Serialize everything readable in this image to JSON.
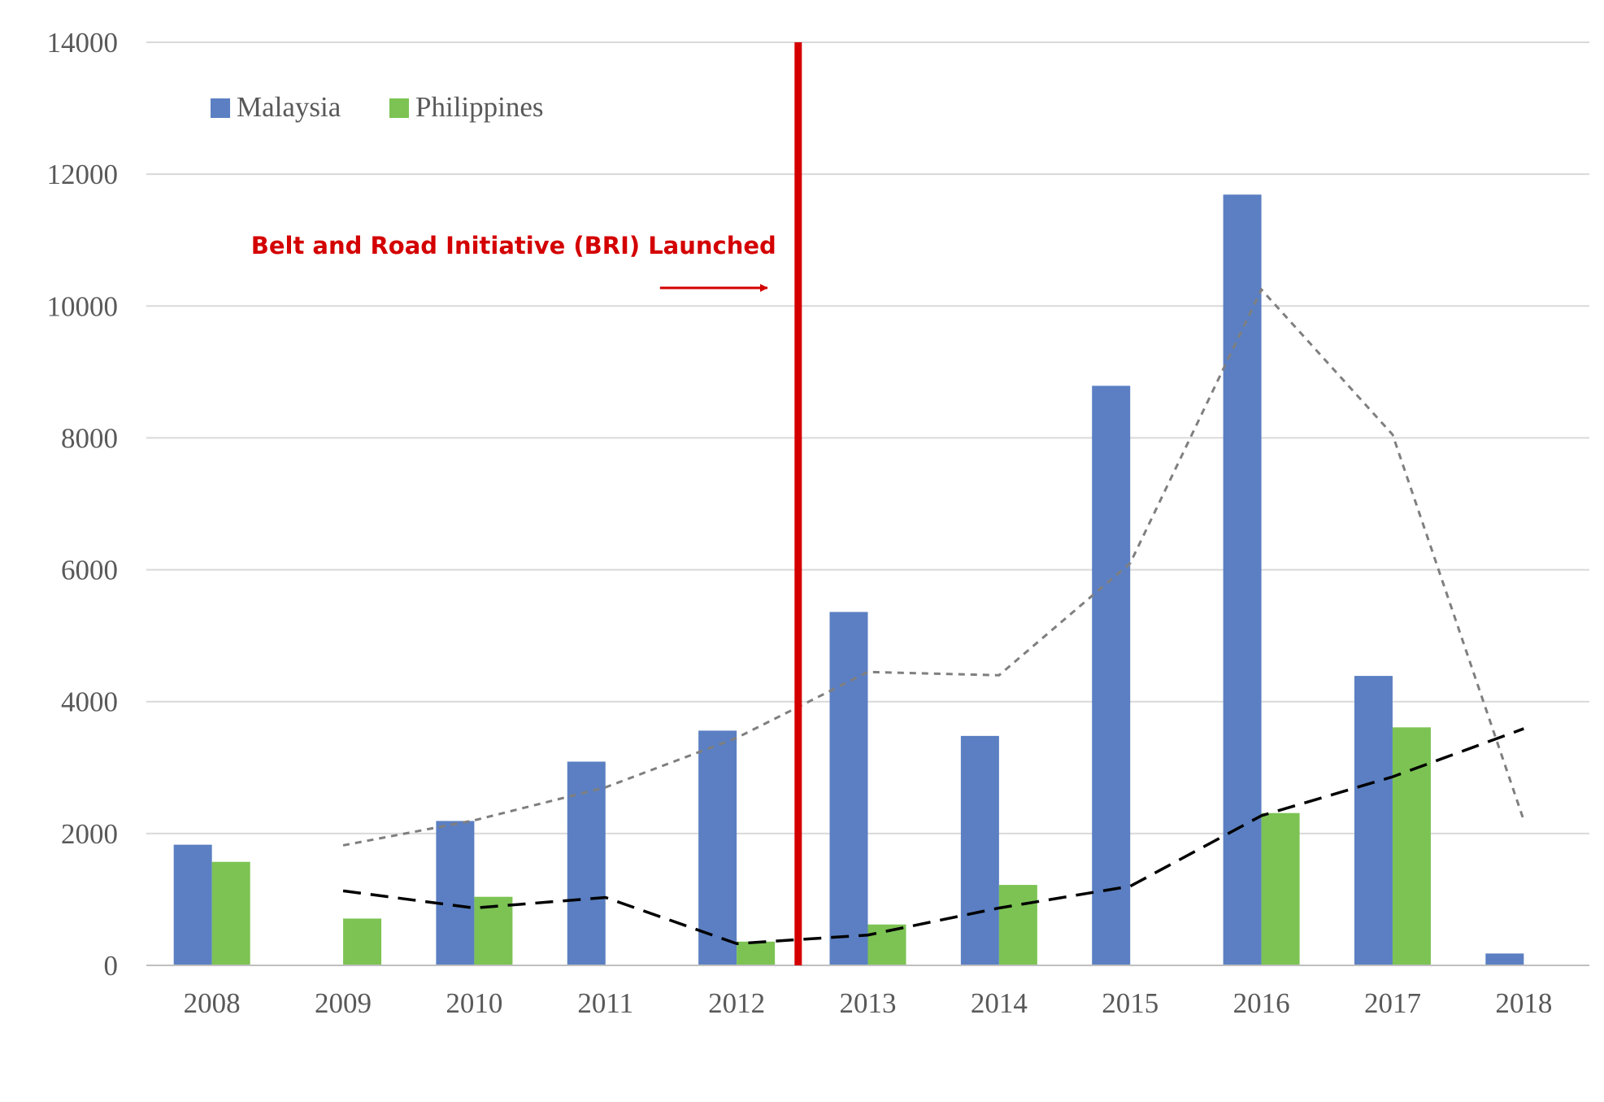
{
  "chart_data": {
    "type": "bar",
    "categories": [
      "2008",
      "2009",
      "2010",
      "2011",
      "2012",
      "2013",
      "2014",
      "2015",
      "2016",
      "2017",
      "2018"
    ],
    "series": [
      {
        "name": "Malaysia",
        "color": "#5b7fc2",
        "values": [
          1830,
          0,
          2190,
          3090,
          3560,
          5360,
          3480,
          8790,
          11690,
          4390,
          180
        ]
      },
      {
        "name": "Philippines",
        "color": "#7cc353",
        "values": [
          1570,
          710,
          1040,
          0,
          360,
          620,
          1220,
          0,
          2310,
          3610,
          0
        ]
      }
    ],
    "trendlines": [
      {
        "style": "dotted",
        "color": "#7f7f7f",
        "x": [
          "2009",
          "2010",
          "2011",
          "2012",
          "2013",
          "2014",
          "2015",
          "2016",
          "2017",
          "2018"
        ],
        "y": [
          1820,
          2200,
          2700,
          3450,
          4450,
          4400,
          6100,
          10250,
          8050,
          2200
        ]
      },
      {
        "style": "dashed",
        "color": "#000000",
        "x": [
          "2009",
          "2010",
          "2011",
          "2012",
          "2013",
          "2014",
          "2015",
          "2016",
          "2017",
          "2018"
        ],
        "y": [
          1130,
          870,
          1030,
          330,
          460,
          870,
          1200,
          2270,
          2860,
          3590
        ]
      }
    ],
    "y_ticks": [
      "0",
      "2000",
      "4000",
      "6000",
      "8000",
      "10000",
      "12000",
      "14000"
    ],
    "ylim": [
      0,
      14000
    ],
    "grid": true,
    "legend_position": "top-left",
    "annotation": {
      "text": "Belt and Road Initiative (BRI) Launched",
      "color": "#d40000",
      "marker_between": [
        "2012",
        "2013"
      ]
    }
  }
}
